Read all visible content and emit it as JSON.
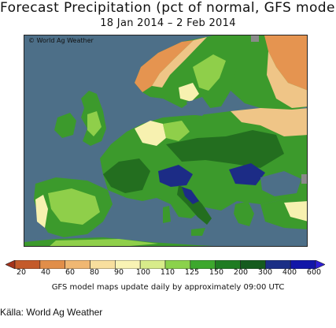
{
  "title": "Forecast Precipitation (pct of normal, GFS model)",
  "subtitle": "18 Jan 2014 – 2 Feb 2014",
  "credit": "World Ag Weather",
  "legend": {
    "ticks": [
      "20",
      "40",
      "60",
      "80",
      "90",
      "100",
      "110",
      "125",
      "150",
      "200",
      "300",
      "400",
      "600"
    ],
    "colors": [
      "#a4331b",
      "#c45a2a",
      "#e18e49",
      "#f0b772",
      "#f8df9e",
      "#f9f3b4",
      "#d8ec8a",
      "#8bd24c",
      "#3da82d",
      "#1f7c22",
      "#155b1e",
      "#1b2f86",
      "#1216a8",
      "#2e1fd6"
    ]
  },
  "footnote": "GFS model maps update daily by approximately 09:00 UTC",
  "source": "Källa: World Ag Weather",
  "palette": {
    "sea": "#4d6f88",
    "land_green": "#3c9a2c",
    "land_dark_green": "#236e1f",
    "land_light_green": "#8fcf4a",
    "land_pale": "#f7f1b0",
    "land_tan": "#efc587",
    "land_orange": "#e59450",
    "land_navy": "#1c2c86",
    "land_grey": "#8a8a8a"
  }
}
